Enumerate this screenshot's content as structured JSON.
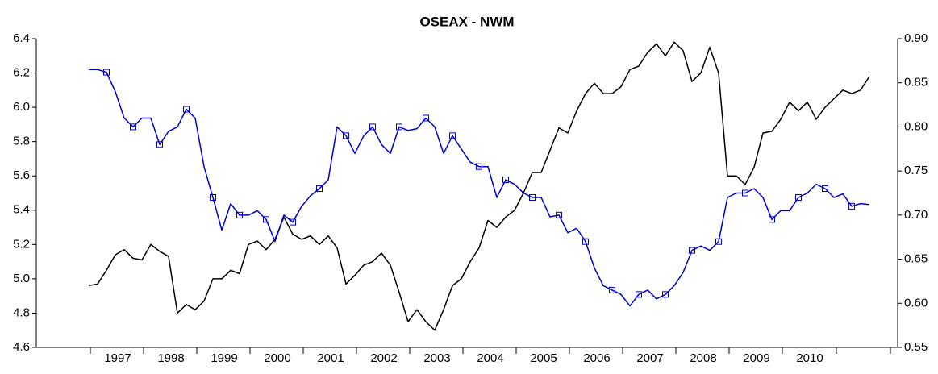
{
  "chart_data": {
    "type": "line",
    "title": "OSEAX - NWM",
    "categories": [
      null,
      null,
      null,
      "1997",
      null,
      null,
      null,
      null,
      null,
      "1998",
      null,
      null,
      null,
      null,
      null,
      "1999",
      null,
      null,
      null,
      null,
      null,
      "2000",
      null,
      null,
      null,
      null,
      null,
      "2001",
      null,
      null,
      null,
      null,
      null,
      "2002",
      null,
      null,
      null,
      null,
      null,
      "2003",
      null,
      null,
      null,
      null,
      null,
      "2004",
      null,
      null,
      null,
      null,
      null,
      "2005",
      null,
      null,
      null,
      null,
      null,
      "2006",
      null,
      null,
      null,
      null,
      null,
      "2007",
      null,
      null,
      null,
      null,
      null,
      "2008",
      null,
      null,
      null,
      null,
      null,
      "2009",
      null,
      null,
      null,
      null,
      null,
      "2010",
      null,
      null,
      null,
      null,
      null,
      null,
      null
    ],
    "series": [
      {
        "color": "#000000",
        "axis": "y",
        "values": [
          4.96,
          4.97,
          5.05,
          5.14,
          5.17,
          5.12,
          5.11,
          5.2,
          5.16,
          5.13,
          4.8,
          4.85,
          4.82,
          4.87,
          5.0,
          5.0,
          5.05,
          5.03,
          5.2,
          5.22,
          5.17,
          5.23,
          5.36,
          5.26,
          5.23,
          5.25,
          5.2,
          5.25,
          5.18,
          4.97,
          5.02,
          5.08,
          5.1,
          5.15,
          5.08,
          4.92,
          4.75,
          4.82,
          4.75,
          4.7,
          4.82,
          4.96,
          5.0,
          5.1,
          5.18,
          5.34,
          5.3,
          5.36,
          5.4,
          5.5,
          5.62,
          5.62,
          5.75,
          5.88,
          5.85,
          5.98,
          6.08,
          6.14,
          6.08,
          6.08,
          6.12,
          6.22,
          6.24,
          6.32,
          6.37,
          6.3,
          6.38,
          6.33,
          6.15,
          6.2,
          6.35,
          6.2,
          5.6,
          5.6,
          5.55,
          5.65,
          5.85,
          5.86,
          5.93,
          6.03,
          5.98,
          6.03,
          5.93,
          6.0,
          6.05,
          6.1,
          6.08,
          6.1,
          6.18
        ]
      },
      {
        "color": "#0000cc",
        "axis": "y2",
        "marker": "square",
        "values": [
          0.865,
          0.865,
          0.862,
          0.84,
          0.81,
          0.8,
          0.81,
          0.81,
          0.78,
          0.795,
          0.8,
          0.82,
          0.81,
          0.755,
          0.72,
          0.683,
          0.713,
          0.7,
          0.7,
          0.705,
          0.695,
          0.67,
          0.7,
          0.692,
          0.71,
          0.722,
          0.73,
          0.74,
          0.8,
          0.79,
          0.77,
          0.79,
          0.8,
          0.78,
          0.77,
          0.8,
          0.796,
          0.798,
          0.81,
          0.8,
          0.77,
          0.79,
          0.775,
          0.76,
          0.755,
          0.755,
          0.72,
          0.74,
          0.735,
          0.725,
          0.72,
          0.72,
          0.698,
          0.7,
          0.68,
          0.685,
          0.67,
          0.64,
          0.62,
          0.615,
          0.61,
          0.597,
          0.61,
          0.615,
          0.605,
          0.61,
          0.62,
          0.635,
          0.66,
          0.665,
          0.66,
          0.67,
          0.72,
          0.725,
          0.725,
          0.73,
          0.72,
          0.695,
          0.705,
          0.705,
          0.72,
          0.725,
          0.735,
          0.73,
          0.72,
          0.724,
          0.71,
          0.713,
          0.712
        ]
      }
    ],
    "ylim": [
      4.6,
      6.4
    ],
    "yticks": [
      4.6,
      4.8,
      {
        "value": 5,
        "label": "5.0"
      },
      5.2,
      5.4,
      5.6,
      5.8,
      {
        "value": 6,
        "label": "6.0"
      },
      6.2,
      6.4
    ],
    "y2lim": [
      0.55,
      0.9
    ],
    "y2ticks": [
      0.55,
      {
        "value": 0.6,
        "label": "0.60"
      },
      0.65,
      {
        "value": 0.7,
        "label": "0.70"
      },
      0.75,
      {
        "value": 0.8,
        "label": "0.80"
      },
      0.85,
      {
        "value": 0.9,
        "label": "0.90"
      }
    ],
    "grid": false
  }
}
